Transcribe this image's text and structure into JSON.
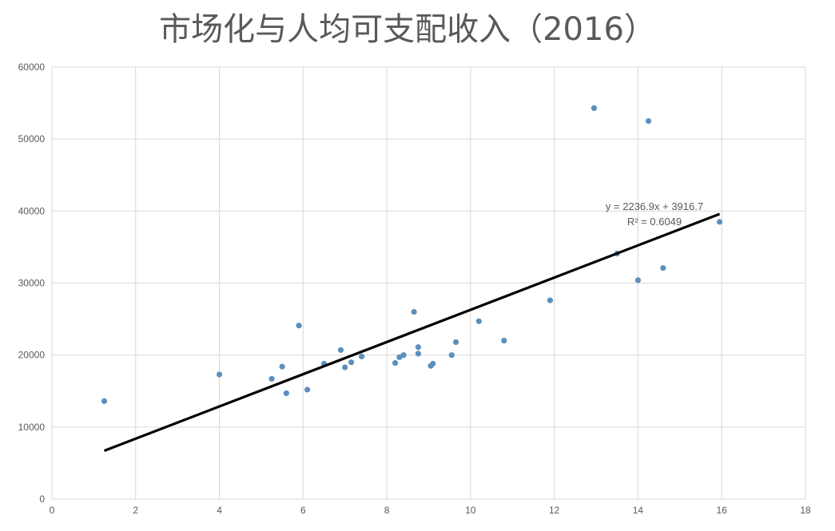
{
  "chart_data": {
    "type": "scatter",
    "title": "市场化与人均可支配收入（2016）",
    "xlim": [
      0,
      18
    ],
    "ylim": [
      0,
      60000
    ],
    "x_ticks": [
      0,
      2,
      4,
      6,
      8,
      10,
      12,
      14,
      16,
      18
    ],
    "y_ticks": [
      0,
      10000,
      20000,
      30000,
      40000,
      50000,
      60000
    ],
    "grid": true,
    "colors": {
      "points": "#5b8fbd",
      "trendline": "#000000",
      "grid": "#d9d9d9",
      "text": "#595959"
    },
    "points": [
      {
        "x": 1.25,
        "y": 13600
      },
      {
        "x": 4.0,
        "y": 17300
      },
      {
        "x": 5.25,
        "y": 16700
      },
      {
        "x": 5.5,
        "y": 18400
      },
      {
        "x": 5.6,
        "y": 14700
      },
      {
        "x": 5.9,
        "y": 24100
      },
      {
        "x": 6.1,
        "y": 15200
      },
      {
        "x": 6.5,
        "y": 18800
      },
      {
        "x": 6.9,
        "y": 20700
      },
      {
        "x": 7.0,
        "y": 18300
      },
      {
        "x": 7.15,
        "y": 19000
      },
      {
        "x": 7.4,
        "y": 19800
      },
      {
        "x": 8.2,
        "y": 18900
      },
      {
        "x": 8.3,
        "y": 19700
      },
      {
        "x": 8.4,
        "y": 20000
      },
      {
        "x": 8.65,
        "y": 26000
      },
      {
        "x": 8.75,
        "y": 20200
      },
      {
        "x": 8.75,
        "y": 21100
      },
      {
        "x": 9.05,
        "y": 18500
      },
      {
        "x": 9.1,
        "y": 18800
      },
      {
        "x": 9.55,
        "y": 20000
      },
      {
        "x": 9.65,
        "y": 21800
      },
      {
        "x": 10.2,
        "y": 24700
      },
      {
        "x": 10.8,
        "y": 22000
      },
      {
        "x": 11.9,
        "y": 27600
      },
      {
        "x": 12.95,
        "y": 54300
      },
      {
        "x": 13.5,
        "y": 34100
      },
      {
        "x": 14.0,
        "y": 30400
      },
      {
        "x": 14.25,
        "y": 52500
      },
      {
        "x": 14.6,
        "y": 32100
      },
      {
        "x": 15.95,
        "y": 38500
      }
    ],
    "trendline": {
      "slope": 2236.9,
      "intercept": 3916.7,
      "x_range": [
        1.25,
        15.95
      ],
      "equation": "y = 2236.9x + 3916.7",
      "r_squared": "R² = 0.6049"
    }
  }
}
